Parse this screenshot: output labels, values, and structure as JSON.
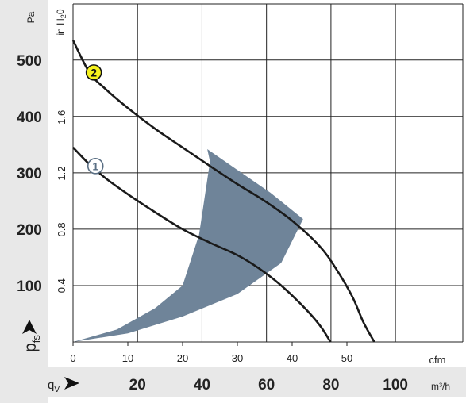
{
  "chart_data": {
    "type": "line",
    "y_axis_left": {
      "unit": "Pa",
      "label": "p",
      "label_sub": "fs",
      "ticks": [
        100,
        200,
        300,
        400,
        500
      ],
      "range": [
        0,
        580
      ]
    },
    "y_axis_secondary": {
      "unit": "in H",
      "unit_sub": "2",
      "unit_suffix": "0",
      "ticks": [
        "0.4",
        "0.8",
        "1.2",
        "1.6"
      ]
    },
    "x_axis_cfm": {
      "unit": "cfm",
      "ticks": [
        0,
        10,
        20,
        30,
        40,
        50
      ],
      "range": [
        0,
        71.3
      ]
    },
    "x_axis_m3h": {
      "label": "q",
      "label_sub": "V",
      "unit": "m³/h",
      "ticks": [
        20,
        40,
        60,
        80,
        100
      ]
    },
    "series": [
      {
        "name": "2",
        "color": "#1a1a1a",
        "label_fill": "#f5f11e",
        "points": [
          [
            0,
            535
          ],
          [
            3,
            478
          ],
          [
            6,
            448
          ],
          [
            10,
            415
          ],
          [
            15,
            378
          ],
          [
            20,
            345
          ],
          [
            25,
            312
          ],
          [
            30,
            280
          ],
          [
            35,
            250
          ],
          [
            40,
            215
          ],
          [
            45,
            170
          ],
          [
            48,
            130
          ],
          [
            51,
            80
          ],
          [
            53,
            35
          ],
          [
            55,
            0
          ]
        ]
      },
      {
        "name": "1",
        "color": "#1a1a1a",
        "label_fill": "#ffffff",
        "points": [
          [
            0,
            345
          ],
          [
            3,
            315
          ],
          [
            6,
            290
          ],
          [
            10,
            262
          ],
          [
            15,
            230
          ],
          [
            20,
            200
          ],
          [
            25,
            176
          ],
          [
            30,
            154
          ],
          [
            34,
            130
          ],
          [
            38,
            100
          ],
          [
            42,
            63
          ],
          [
            45,
            30
          ],
          [
            47,
            0
          ]
        ]
      }
    ],
    "operating_range": {
      "color": "#6f8499",
      "outline": [
        [
          0,
          0
        ],
        [
          8,
          22
        ],
        [
          15,
          60
        ],
        [
          20,
          100
        ],
        [
          23,
          190
        ],
        [
          25,
          320
        ],
        [
          24.5,
          342
        ],
        [
          30,
          305
        ],
        [
          36,
          265
        ],
        [
          42,
          218
        ],
        [
          38,
          140
        ],
        [
          30,
          85
        ],
        [
          20,
          45
        ],
        [
          10,
          15
        ],
        [
          0,
          0
        ]
      ]
    }
  }
}
